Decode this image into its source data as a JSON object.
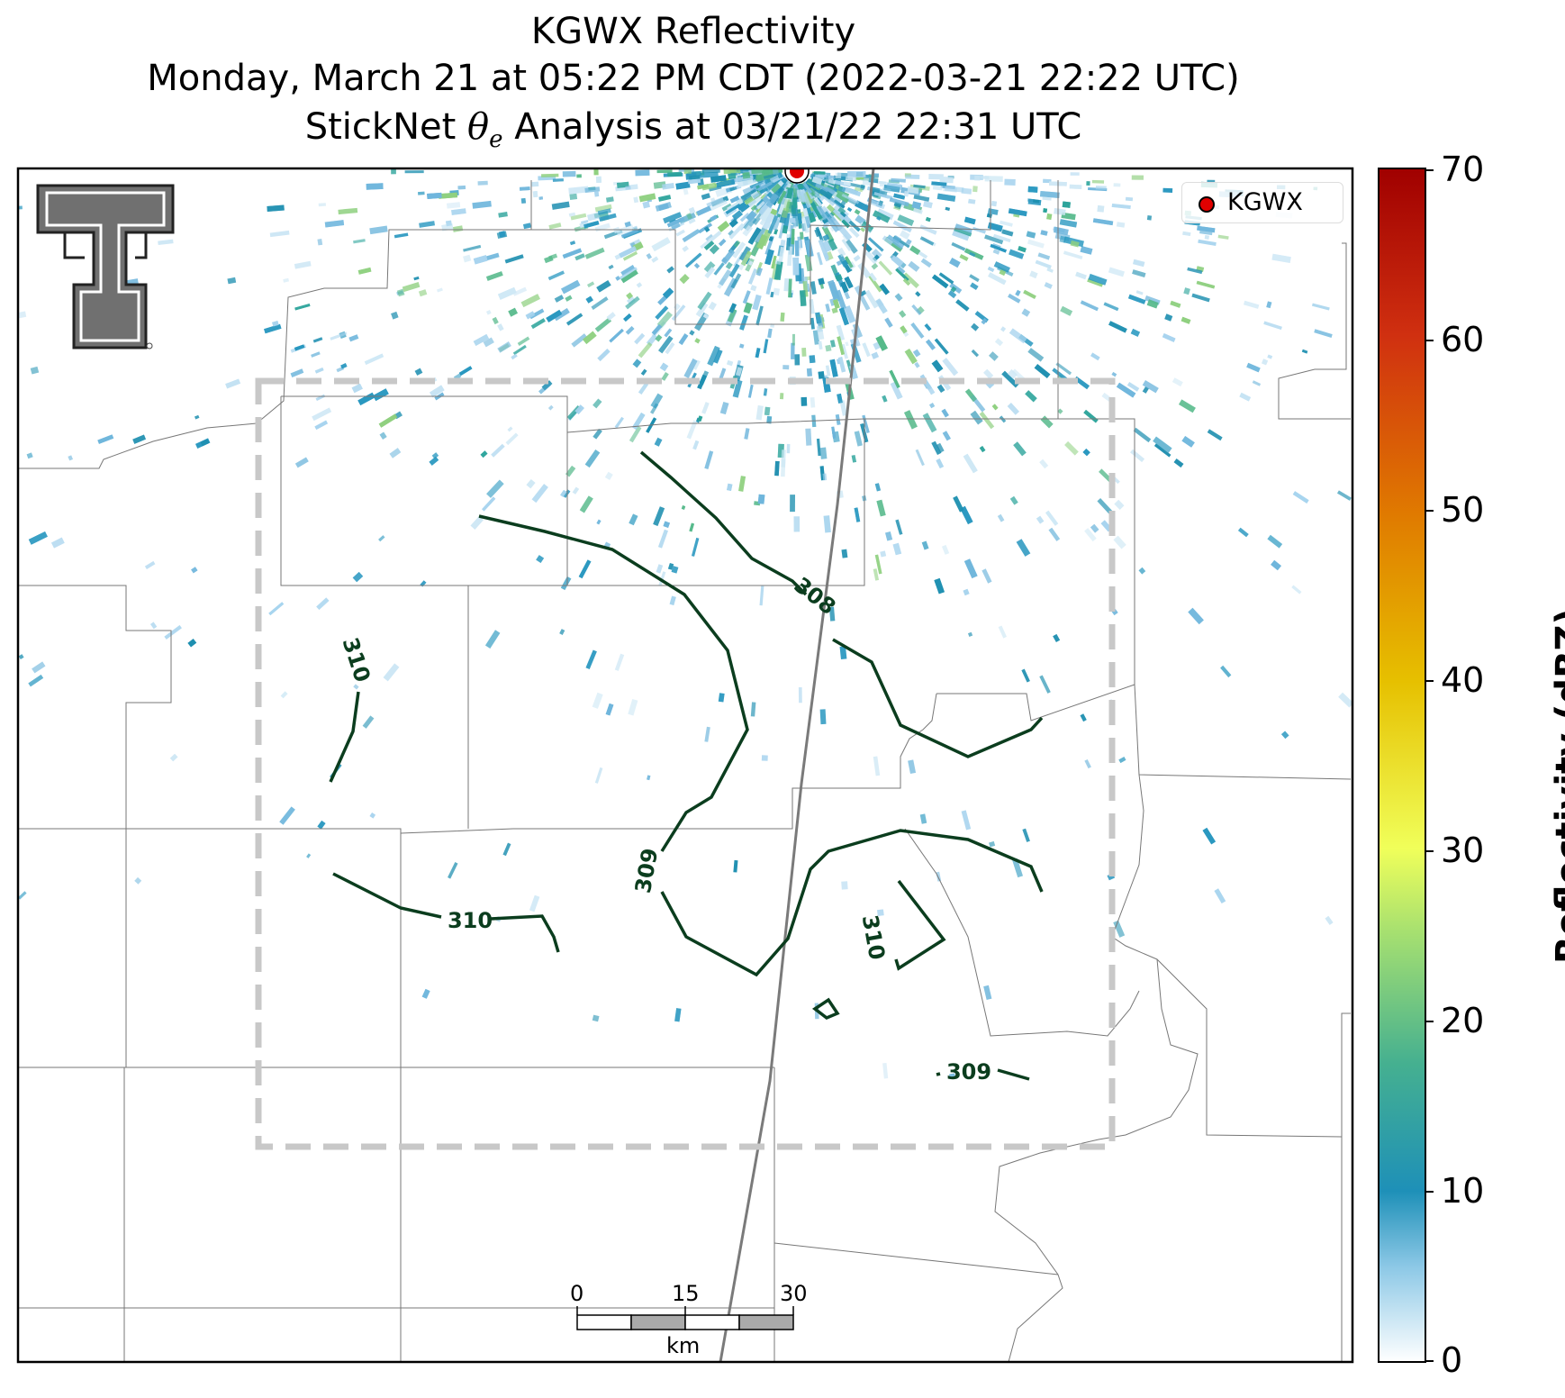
{
  "title": {
    "line1": "KGWX Reflectivity",
    "line2": "Monday, March 21 at 05:22 PM CDT (2022-03-21 22:22 UTC)",
    "line3_prefix": "StickNet ",
    "line3_symbol": "θ",
    "line3_subscript": "e",
    "line3_suffix": " Analysis at 03/21/22 22:31 UTC"
  },
  "legend": {
    "label": "KGWX",
    "marker_color": "#e00000"
  },
  "colorbar": {
    "label": "Reflectivity (dBZ)",
    "ticks": [
      "70",
      "60",
      "50",
      "40",
      "30",
      "20",
      "10",
      "0"
    ],
    "colors": [
      "#ffffff",
      "#1e90b8",
      "#2aa0a0",
      "#7cd08c",
      "#e8ff5a",
      "#e6c800",
      "#e07a00",
      "#c82800",
      "#a00000"
    ]
  },
  "contours": {
    "color": "#0b3d1e",
    "labels": [
      "308",
      "310",
      "309",
      "310",
      "310",
      "309"
    ]
  },
  "scalebar": {
    "ticks": [
      "0",
      "15",
      "30"
    ],
    "unit": "km"
  },
  "logo": {
    "name": "Texas Tech Double T"
  },
  "radar_site": {
    "name": "KGWX",
    "color": "#e00000"
  }
}
